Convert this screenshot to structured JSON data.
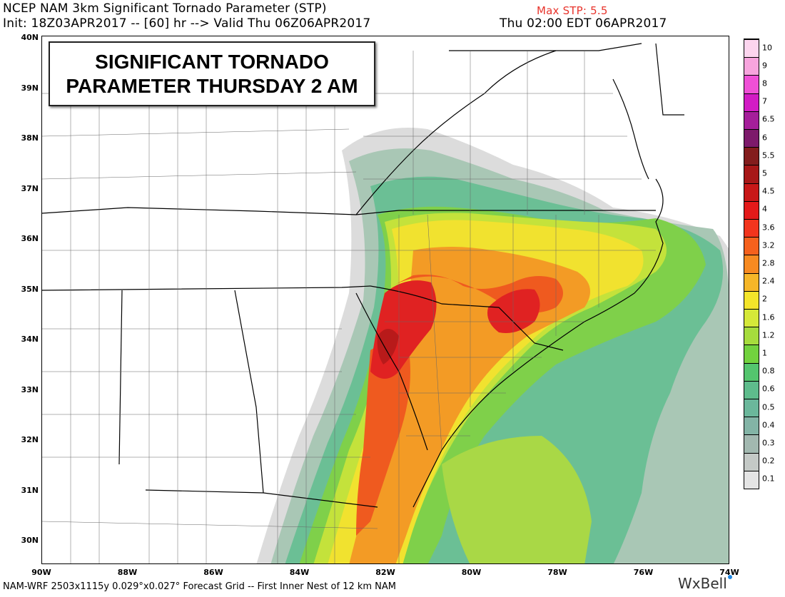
{
  "header": {
    "title": "NCEP NAM 3km Significant Tornado Parameter (STP)",
    "init": "Init: 18Z03APR2017 -- [60] hr --> Valid Thu 06Z06APR2017",
    "valid_local": "Thu 02:00 EDT 06APR2017",
    "max_stp": "Max STP: 5.5"
  },
  "overlay": {
    "line1": "SIGNIFICANT TORNADO",
    "line2": "PARAMETER THURSDAY 2 AM"
  },
  "footer": {
    "info": "NAM-WRF 2503x1115y 0.029°x0.027° Forecast Grid -- First Inner Nest of 12 km NAM",
    "brand": "WxBell"
  },
  "axes": {
    "lat_labels": [
      "40N",
      "39N",
      "38N",
      "37N",
      "36N",
      "35N",
      "34N",
      "33N",
      "32N",
      "31N",
      "30N"
    ],
    "lon_labels": [
      "90W",
      "88W",
      "86W",
      "84W",
      "82W",
      "80W",
      "78W",
      "76W",
      "74W"
    ]
  },
  "colorbar": {
    "labels": [
      "10",
      "9",
      "8",
      "7",
      "6.5",
      "6",
      "5.5",
      "5",
      "4.5",
      "4",
      "3.6",
      "3.2",
      "2.8",
      "2.4",
      "2",
      "1.6",
      "1.2",
      "1",
      "0.8",
      "0.6",
      "0.5",
      "0.4",
      "0.3",
      "0.2",
      "0.1"
    ],
    "colors": [
      "#fcd5ee",
      "#f7a4dd",
      "#ef50d6",
      "#d21bc4",
      "#a51e9a",
      "#7d1a6b",
      "#831d1d",
      "#a71818",
      "#c81818",
      "#e41a1a",
      "#f2351d",
      "#f5611d",
      "#f78a21",
      "#f6b628",
      "#f4e52a",
      "#d5e839",
      "#a6dc3d",
      "#72d23e",
      "#54c56e",
      "#5ebc8c",
      "#6bb79b",
      "#83b4a6",
      "#a2b8b0",
      "#c4c9c6",
      "#e4e4e4"
    ]
  },
  "map_colors": {
    "light_gray": "#dcdcdc",
    "gray_green": "#a9c7b5",
    "teal": "#6bbf95",
    "green": "#7fd04a",
    "yellow_green": "#c4e23b",
    "yellow": "#f1e22f",
    "orange": "#f39b25",
    "red_orange": "#ef5a1f",
    "red": "#e02222",
    "dark_red": "#b81a1a"
  }
}
